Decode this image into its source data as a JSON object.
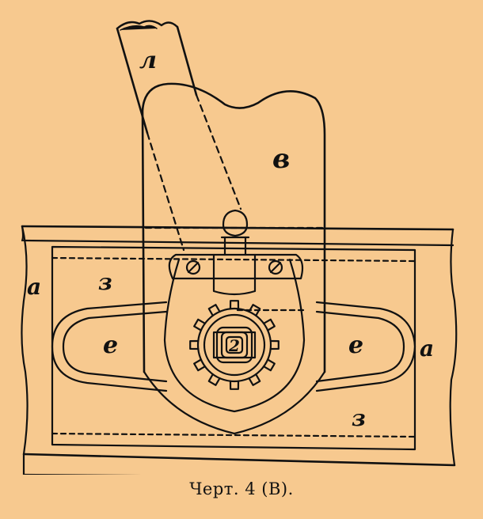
{
  "labels": {
    "l": "л",
    "v": "в",
    "z_top": "з",
    "z_bottom": "з",
    "a_left": "a",
    "a_right": "a",
    "e_left": "e",
    "e_right": "e",
    "center": "2"
  },
  "caption": "Черт. 4 (В).",
  "colors": {
    "paper": "#f7c98f",
    "ink": "#111111"
  },
  "gear_teeth": 12
}
